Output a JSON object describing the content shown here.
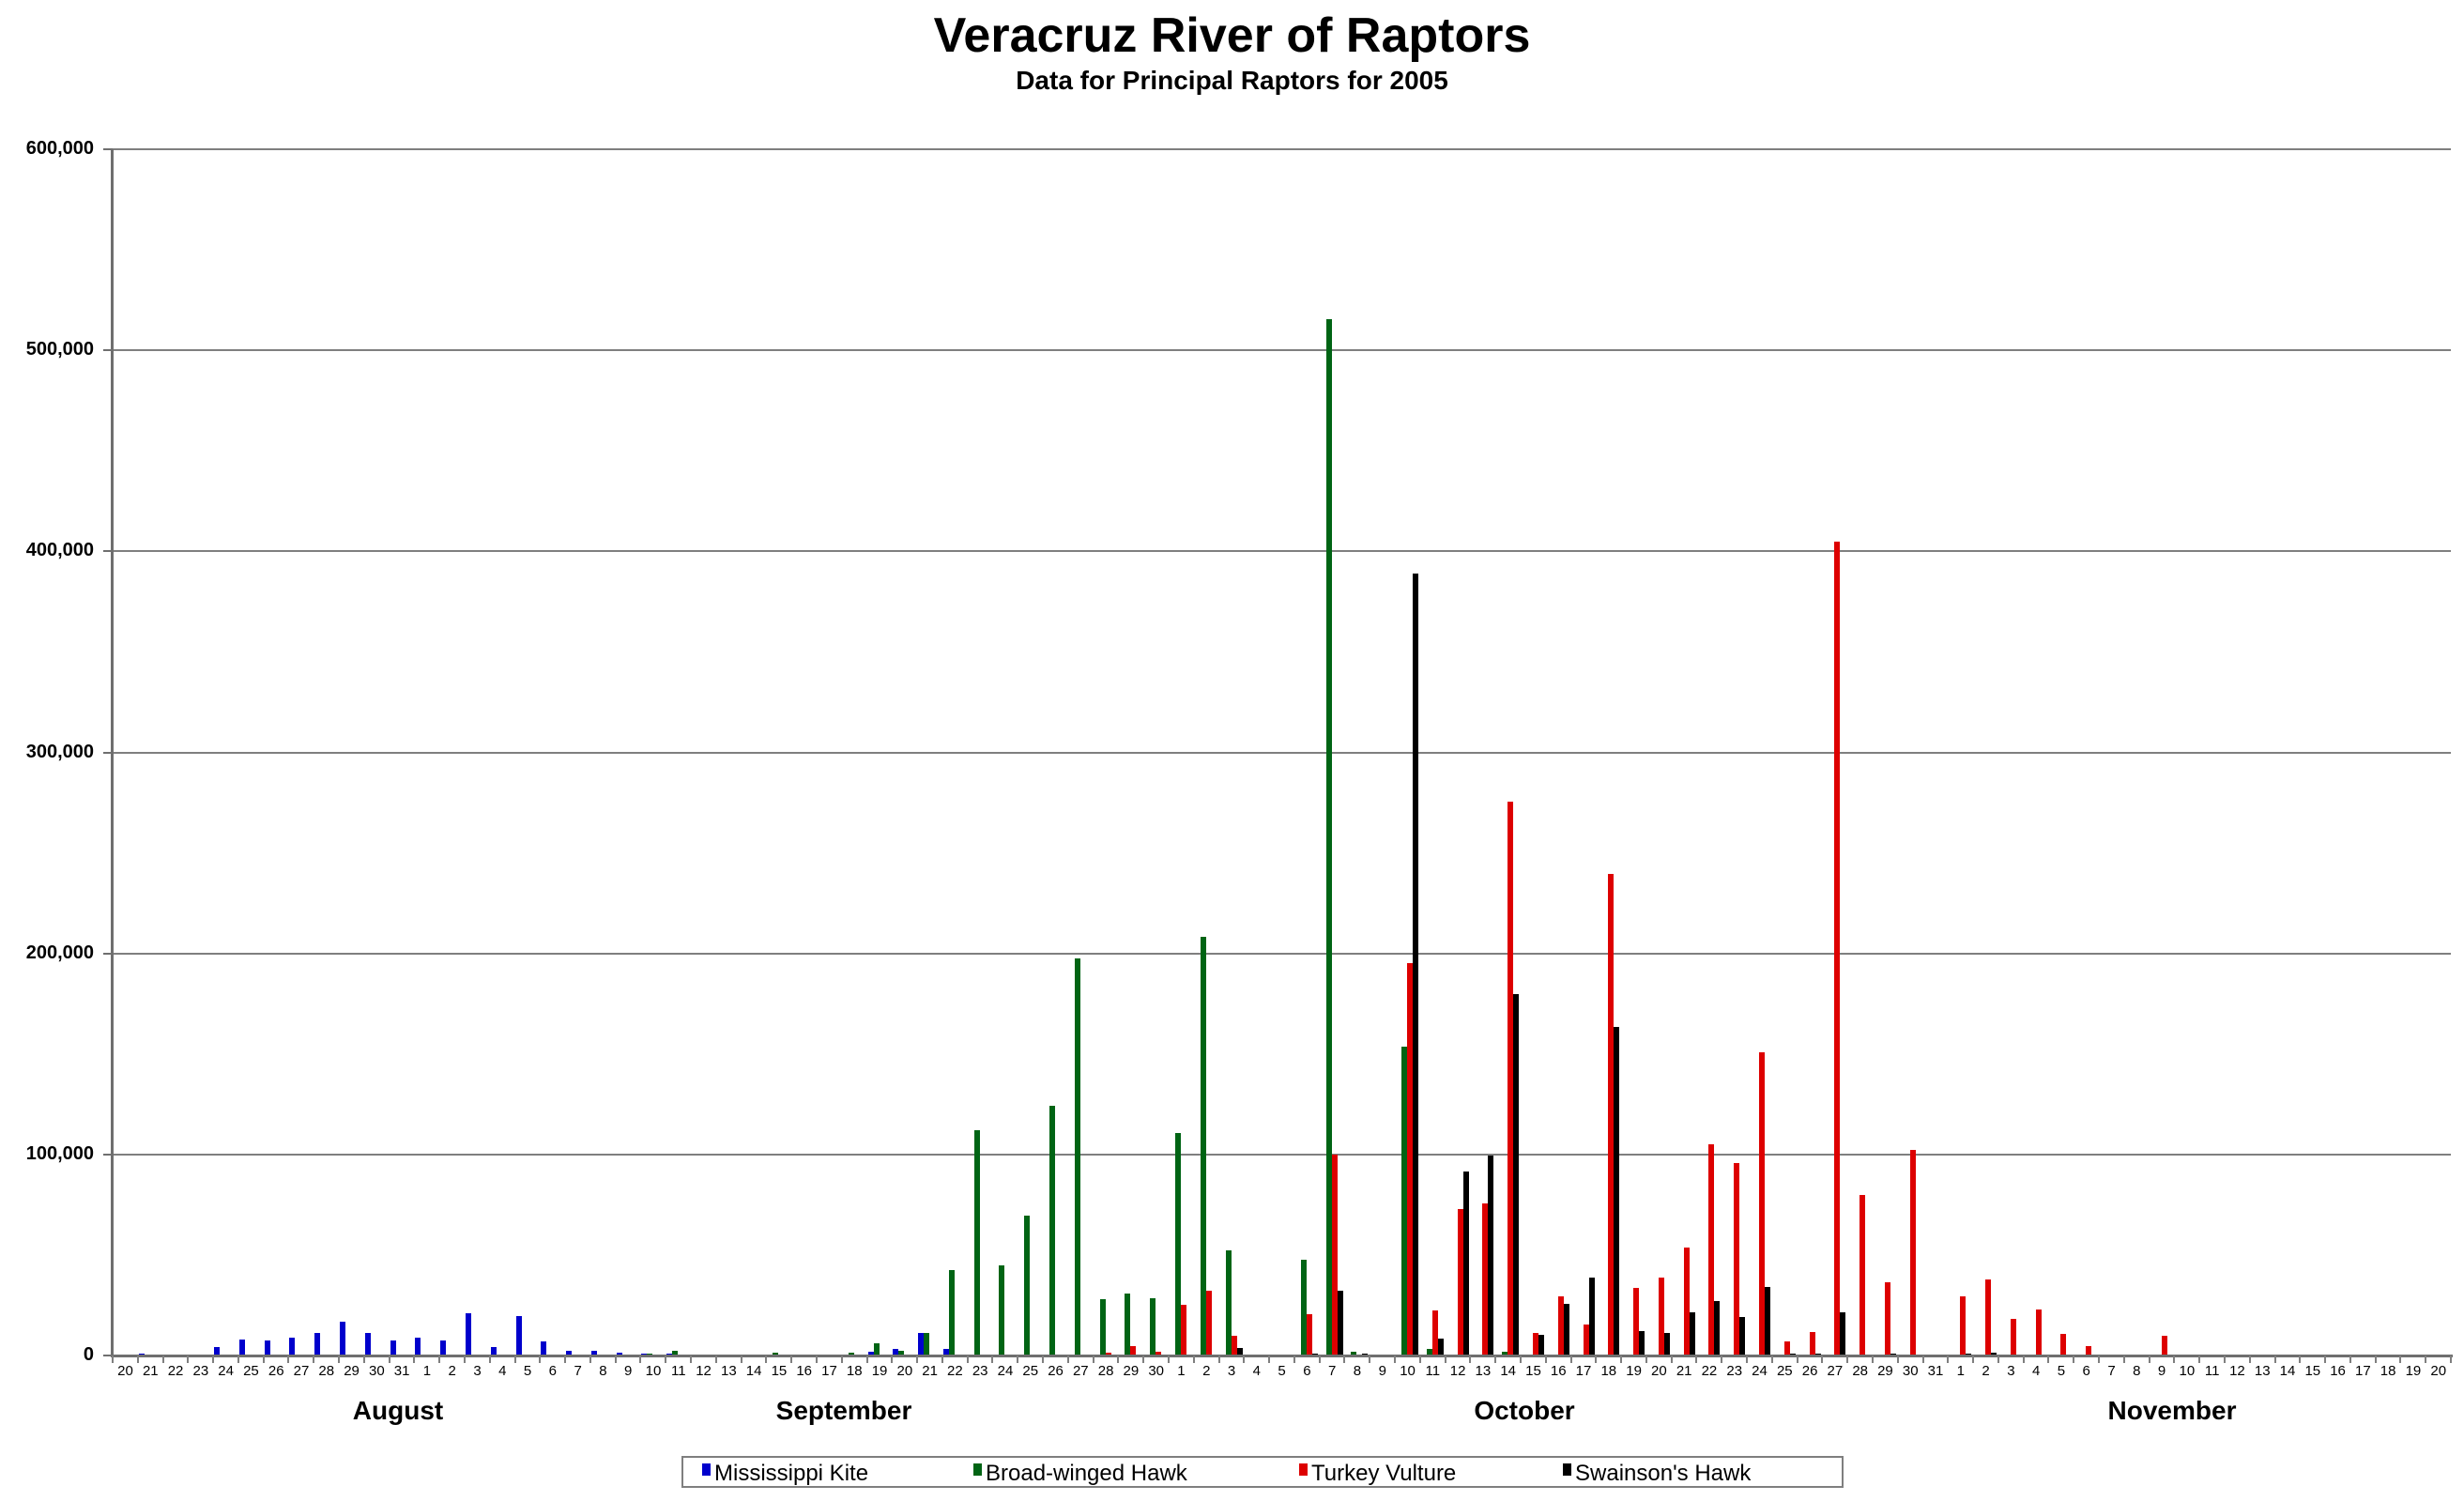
{
  "header": {
    "title": "Veracruz River of Raptors",
    "subtitle": "Data for Principal Raptors for 2005"
  },
  "colors": {
    "mississippi_kite": "#0000cc",
    "broad_winged_hawk": "#006414",
    "turkey_vulture": "#dd0000",
    "swainsons_hawk": "#000000",
    "gridline": "#7f7f7f"
  },
  "legend": [
    {
      "label": "Mississippi Kite",
      "color": "#0000cc"
    },
    {
      "label": "Broad-winged Hawk",
      "color": "#006414"
    },
    {
      "label": "Turkey Vulture",
      "color": "#dd0000"
    },
    {
      "label": "Swainson's Hawk",
      "color": "#000000"
    }
  ],
  "chart_data": {
    "type": "bar",
    "title": "Veracruz River of Raptors",
    "subtitle": "Data for Principal Raptors for 2005",
    "xlabel": "",
    "ylabel": "",
    "ylim": [
      0,
      600000
    ],
    "yticks": [
      "0",
      "100,000",
      "200,000",
      "300,000",
      "400,000",
      "500,000",
      "600,000"
    ],
    "grid": true,
    "legend_position": "bottom",
    "month_labels": [
      {
        "label": "August",
        "x": 424
      },
      {
        "label": "September",
        "x": 899
      },
      {
        "label": "October",
        "x": 1624
      },
      {
        "label": "November",
        "x": 2314
      }
    ],
    "categories": [
      "20",
      "21",
      "22",
      "23",
      "24",
      "25",
      "26",
      "27",
      "28",
      "29",
      "30",
      "31",
      "1",
      "2",
      "3",
      "4",
      "5",
      "6",
      "7",
      "8",
      "9",
      "10",
      "11",
      "12",
      "13",
      "14",
      "15",
      "16",
      "17",
      "18",
      "19",
      "20",
      "21",
      "22",
      "23",
      "24",
      "25",
      "26",
      "27",
      "28",
      "29",
      "30",
      "1",
      "2",
      "3",
      "4",
      "5",
      "6",
      "7",
      "8",
      "9",
      "10",
      "11",
      "12",
      "13",
      "14",
      "15",
      "16",
      "17",
      "18",
      "19",
      "20",
      "21",
      "22",
      "23",
      "24",
      "25",
      "26",
      "27",
      "28",
      "29",
      "30",
      "31",
      "1",
      "2",
      "3",
      "4",
      "5",
      "6",
      "7",
      "8",
      "9",
      "10",
      "11",
      "12",
      "13",
      "14",
      "15",
      "16",
      "17",
      "18",
      "19",
      "20"
    ],
    "series": [
      {
        "name": "Mississippi Kite",
        "color": "#0000cc",
        "values": [
          0,
          800,
          300,
          0,
          4300,
          7800,
          7300,
          8800,
          11300,
          16800,
          11300,
          7300,
          8800,
          7300,
          20800,
          4300,
          19800,
          6800,
          2300,
          2300,
          1300,
          800,
          800,
          300,
          300,
          300,
          300,
          300,
          300,
          300,
          1700,
          3100,
          11000,
          3100,
          500,
          0,
          300,
          500,
          300,
          200,
          200,
          200,
          200,
          200,
          0,
          0,
          0,
          0,
          0,
          0,
          0,
          0,
          0,
          0,
          0,
          0,
          0,
          0,
          0,
          0,
          0,
          0,
          0,
          0,
          0,
          0,
          0,
          0,
          0,
          0,
          0,
          0,
          0,
          0,
          0,
          0,
          0,
          0,
          0,
          0,
          0,
          0,
          0,
          0,
          0,
          0,
          0,
          0,
          0,
          0,
          0,
          0,
          0
        ]
      },
      {
        "name": "Broad-winged Hawk",
        "color": "#006414",
        "values": [
          0,
          0,
          0,
          0,
          0,
          0,
          0,
          0,
          0,
          0,
          0,
          0,
          0,
          0,
          0,
          0,
          0,
          0,
          0,
          0,
          0,
          800,
          2200,
          0,
          0,
          0,
          1200,
          0,
          0,
          1200,
          5900,
          2200,
          11000,
          42700,
          112000,
          44600,
          69400,
          124000,
          197700,
          28200,
          30600,
          28700,
          110600,
          208400,
          52100,
          0,
          0,
          47400,
          515500,
          2000,
          0,
          153800,
          3400,
          0,
          0,
          2000,
          0,
          0,
          0,
          0,
          0,
          0,
          0,
          0,
          0,
          0,
          0,
          0,
          0,
          0,
          0,
          0,
          0,
          0,
          0,
          0,
          0,
          0,
          0,
          0,
          0,
          0,
          0,
          0,
          0,
          0,
          0,
          0,
          0,
          0,
          0,
          0,
          0
        ]
      },
      {
        "name": "Turkey Vulture",
        "color": "#dd0000",
        "values": [
          0,
          0,
          0,
          0,
          300,
          0,
          0,
          0,
          0,
          0,
          0,
          0,
          0,
          0,
          0,
          0,
          300,
          0,
          0,
          0,
          0,
          0,
          0,
          0,
          0,
          0,
          0,
          0,
          0,
          0,
          0,
          0,
          0,
          0,
          0,
          0,
          600,
          0,
          600,
          1600,
          4800,
          2000,
          25000,
          32400,
          10000,
          0,
          0,
          20400,
          100000,
          0,
          0,
          195000,
          22400,
          72700,
          75700,
          275700,
          11200,
          29500,
          15300,
          239400,
          33500,
          38600,
          53500,
          105000,
          95600,
          150700,
          7000,
          11500,
          404800,
          79700,
          36200,
          102200,
          0,
          29600,
          38000,
          18400,
          23100,
          10900,
          4800,
          300,
          300,
          10000,
          0,
          0,
          0,
          0,
          0,
          0,
          0,
          0,
          0,
          0,
          0
        ]
      },
      {
        "name": "Swainson's Hawk",
        "color": "#000000",
        "values": [
          0,
          0,
          0,
          0,
          0,
          0,
          0,
          0,
          0,
          0,
          0,
          0,
          0,
          0,
          0,
          0,
          0,
          0,
          0,
          0,
          0,
          0,
          0,
          0,
          0,
          0,
          0,
          0,
          0,
          0,
          0,
          0,
          0,
          0,
          0,
          0,
          0,
          0,
          0,
          0,
          0,
          0,
          0,
          0,
          3900,
          0,
          0,
          1000,
          32000,
          1000,
          0,
          389000,
          8500,
          91300,
          99500,
          179600,
          10500,
          25800,
          38600,
          163600,
          12000,
          11200,
          21400,
          27000,
          19000,
          34000,
          1000,
          1000,
          21400,
          300,
          1000,
          0,
          0,
          1000,
          1500,
          0,
          0,
          0,
          0,
          0,
          0,
          0,
          0,
          0,
          0,
          0,
          0,
          0,
          0,
          0,
          0,
          0,
          0
        ]
      }
    ]
  }
}
